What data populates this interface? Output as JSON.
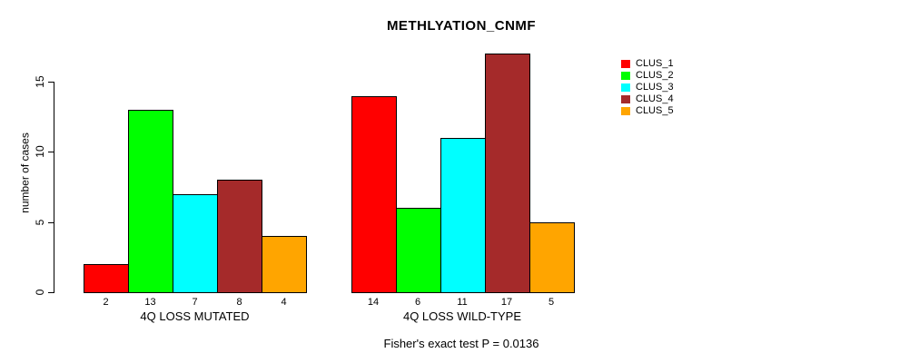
{
  "chart_data": {
    "type": "bar",
    "title": "METHLYATION_CNMF",
    "ylabel": "number of cases",
    "ylim": [
      0,
      15
    ],
    "yticks": [
      0,
      5,
      10,
      15
    ],
    "grid": false,
    "legend_position": "right-outside",
    "footnote": "Fisher's exact test P = 0.0136",
    "legend": [
      {
        "label": "CLUS_1",
        "color": "#FF0000"
      },
      {
        "label": "CLUS_2",
        "color": "#00FF00"
      },
      {
        "label": "CLUS_3",
        "color": "#00FFFF"
      },
      {
        "label": "CLUS_4",
        "color": "#A52A2A"
      },
      {
        "label": "CLUS_5",
        "color": "#FFA500"
      }
    ],
    "groups": [
      {
        "label": "4Q LOSS MUTATED",
        "values": [
          2,
          13,
          7,
          8,
          4
        ]
      },
      {
        "label": "4Q LOSS WILD-TYPE",
        "values": [
          14,
          6,
          11,
          17,
          5
        ]
      }
    ]
  }
}
